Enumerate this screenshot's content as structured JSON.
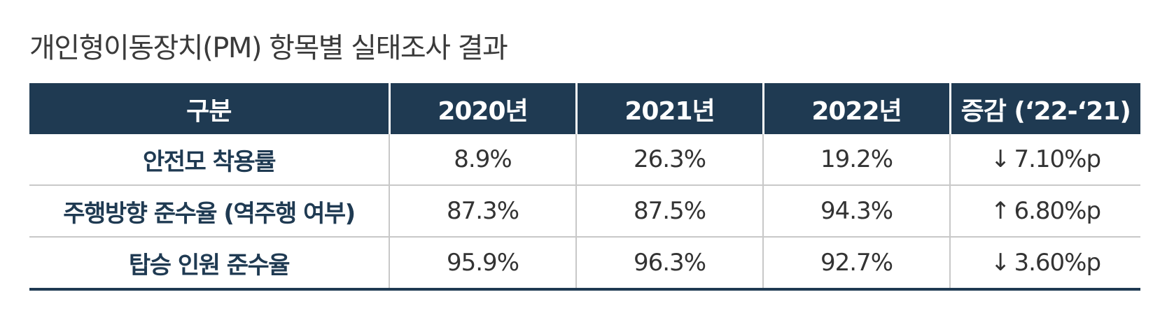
{
  "title": "개인형이동장치(PM) 항목별 실태조사 결과",
  "colors": {
    "header_bg": "#1f3a52",
    "header_text": "#ffffff",
    "row_label_text": "#1f3a52",
    "cell_text": "#333333",
    "grid_line": "#c8c8c8"
  },
  "table": {
    "headers": [
      "구분",
      "2020년",
      "2021년",
      "2022년",
      "증감 (‘22-‘21)"
    ],
    "rows": [
      {
        "label": "안전모 착용률",
        "y2020": "8.9%",
        "y2021": "26.3%",
        "y2022": "19.2%",
        "change_icon": "arrow-down-icon",
        "change_arrow": "↓",
        "change_value": "7.10%p"
      },
      {
        "label": "주행방향 준수율 (역주행 여부)",
        "y2020": "87.3%",
        "y2021": "87.5%",
        "y2022": "94.3%",
        "change_icon": "arrow-up-icon",
        "change_arrow": "↑",
        "change_value": "6.80%p"
      },
      {
        "label": "탑승 인원 준수율",
        "y2020": "95.9%",
        "y2021": "96.3%",
        "y2022": "92.7%",
        "change_icon": "arrow-down-icon",
        "change_arrow": "↓",
        "change_value": "3.60%p"
      }
    ]
  }
}
